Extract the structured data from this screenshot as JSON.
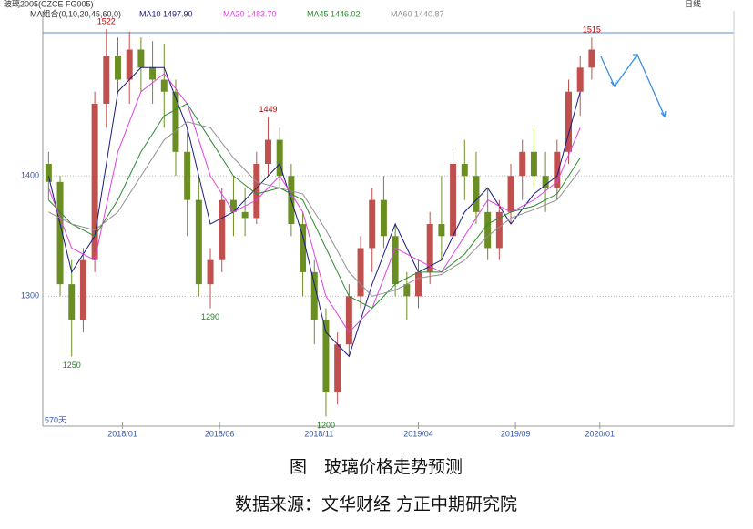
{
  "chart_data": {
    "type": "candlestick",
    "header": {
      "symbol": "玻璃2005(CZCE FG005)",
      "indicator": "MA组合(0,10,20,45,60,0)",
      "period": "日线"
    },
    "days_label": "570天",
    "caption": "图　玻璃价格走势预测",
    "source": "数据来源：文华财经 方正中期研究院",
    "x": [
      0,
      1,
      2,
      3,
      4,
      5,
      6,
      7,
      8,
      9,
      10,
      11,
      12,
      13,
      14,
      15,
      16,
      17,
      18,
      19,
      20,
      21,
      22,
      23,
      24,
      25,
      26,
      27,
      28,
      29,
      30,
      31,
      32,
      33,
      34,
      35,
      36,
      37,
      38,
      39,
      40,
      41,
      42,
      43,
      44,
      45,
      46,
      47
    ],
    "open": [
      1410,
      1395,
      1310,
      1280,
      1330,
      1460,
      1500,
      1480,
      1505,
      1490,
      1480,
      1470,
      1420,
      1380,
      1310,
      1330,
      1380,
      1370,
      1365,
      1410,
      1430,
      1400,
      1360,
      1320,
      1280,
      1220,
      1260,
      1300,
      1340,
      1380,
      1350,
      1310,
      1300,
      1320,
      1360,
      1350,
      1410,
      1400,
      1370,
      1340,
      1370,
      1400,
      1420,
      1400,
      1390,
      1420,
      1470,
      1490
    ],
    "high": [
      1420,
      1400,
      1330,
      1340,
      1470,
      1522,
      1515,
      1520,
      1515,
      1512,
      1510,
      1480,
      1440,
      1400,
      1340,
      1390,
      1400,
      1390,
      1420,
      1449,
      1440,
      1410,
      1370,
      1330,
      1290,
      1270,
      1310,
      1350,
      1390,
      1400,
      1360,
      1320,
      1330,
      1370,
      1400,
      1420,
      1430,
      1420,
      1390,
      1380,
      1410,
      1430,
      1440,
      1420,
      1430,
      1480,
      1500,
      1515
    ],
    "low": [
      1380,
      1300,
      1250,
      1270,
      1320,
      1440,
      1470,
      1460,
      1470,
      1460,
      1440,
      1400,
      1350,
      1300,
      1290,
      1320,
      1350,
      1350,
      1360,
      1400,
      1390,
      1350,
      1300,
      1260,
      1200,
      1210,
      1250,
      1290,
      1320,
      1340,
      1300,
      1280,
      1290,
      1310,
      1330,
      1340,
      1380,
      1360,
      1330,
      1330,
      1360,
      1380,
      1390,
      1370,
      1380,
      1410,
      1450,
      1480
    ],
    "close": [
      1395,
      1310,
      1280,
      1330,
      1460,
      1500,
      1480,
      1505,
      1490,
      1480,
      1470,
      1420,
      1380,
      1310,
      1330,
      1380,
      1370,
      1365,
      1410,
      1430,
      1400,
      1360,
      1320,
      1280,
      1220,
      1260,
      1300,
      1340,
      1380,
      1350,
      1310,
      1300,
      1320,
      1360,
      1350,
      1410,
      1400,
      1370,
      1340,
      1370,
      1400,
      1420,
      1400,
      1390,
      1420,
      1470,
      1490,
      1505
    ],
    "up_color": "#c0504d",
    "down_color": "#6b8e23",
    "series": [
      {
        "name": "MA10 1497.90",
        "color": "#1a1a80",
        "x": [
          0,
          2,
          4,
          6,
          8,
          10,
          12,
          14,
          16,
          18,
          20,
          22,
          24,
          26,
          28,
          30,
          32,
          34,
          36,
          38,
          40,
          42,
          44,
          46
        ],
        "values": [
          1400,
          1320,
          1350,
          1470,
          1490,
          1490,
          1440,
          1360,
          1370,
          1390,
          1410,
          1350,
          1270,
          1250,
          1310,
          1360,
          1320,
          1330,
          1370,
          1390,
          1360,
          1385,
          1400,
          1470
        ]
      },
      {
        "name": "MA20 1483.70",
        "color": "#e040e0",
        "x": [
          0,
          2,
          4,
          6,
          8,
          10,
          12,
          14,
          16,
          18,
          20,
          22,
          24,
          26,
          28,
          30,
          32,
          34,
          36,
          38,
          40,
          42,
          44,
          46
        ],
        "values": [
          1390,
          1340,
          1330,
          1420,
          1470,
          1485,
          1460,
          1400,
          1370,
          1380,
          1400,
          1370,
          1300,
          1270,
          1290,
          1340,
          1330,
          1320,
          1350,
          1380,
          1370,
          1380,
          1395,
          1440
        ]
      },
      {
        "name": "MA45 1446.02",
        "color": "#2e8b2e",
        "x": [
          0,
          2,
          4,
          6,
          8,
          10,
          12,
          14,
          16,
          18,
          20,
          22,
          24,
          26,
          28,
          30,
          32,
          34,
          36,
          38,
          40,
          42,
          44,
          46
        ],
        "values": [
          1380,
          1360,
          1350,
          1380,
          1420,
          1450,
          1460,
          1430,
          1400,
          1385,
          1390,
          1380,
          1340,
          1300,
          1290,
          1310,
          1320,
          1320,
          1335,
          1360,
          1370,
          1375,
          1385,
          1415
        ]
      },
      {
        "name": "MA60 1440.87",
        "color": "#909090",
        "x": [
          0,
          2,
          4,
          6,
          8,
          10,
          12,
          14,
          16,
          18,
          20,
          22,
          24,
          26,
          28,
          30,
          32,
          34,
          36,
          38,
          40,
          42,
          44,
          46
        ],
        "values": [
          1370,
          1360,
          1355,
          1370,
          1400,
          1430,
          1445,
          1440,
          1415,
          1395,
          1390,
          1385,
          1355,
          1320,
          1300,
          1305,
          1315,
          1318,
          1330,
          1350,
          1365,
          1372,
          1380,
          1405
        ]
      }
    ],
    "annotations": [
      {
        "value": 1522,
        "x": 5,
        "color": "#c00000"
      },
      {
        "value": 1449,
        "x": 19,
        "color": "#c00000"
      },
      {
        "value": 1290,
        "x": 14,
        "color": "#2e7d2e"
      },
      {
        "value": 1250,
        "x": 2,
        "color": "#2e7d2e"
      },
      {
        "value": 1200,
        "x": 24,
        "color": "#2e7d2e"
      },
      {
        "value": 1515,
        "x": 47,
        "color": "#c00000"
      }
    ],
    "xlim": [
      -0.5,
      59.3
    ],
    "xticks": [
      {
        "value": 6.4,
        "label": "2018/01"
      },
      {
        "value": 14.8,
        "label": "2018/06"
      },
      {
        "value": 23.4,
        "label": "2018/11"
      },
      {
        "value": 32.0,
        "label": "2019/04"
      },
      {
        "value": 40.4,
        "label": "2019/09"
      },
      {
        "value": 47.7,
        "label": "2020/01"
      }
    ],
    "ylim": [
      1192,
      1519
    ],
    "yticks": [
      1300,
      1400
    ],
    "grid": true
  }
}
